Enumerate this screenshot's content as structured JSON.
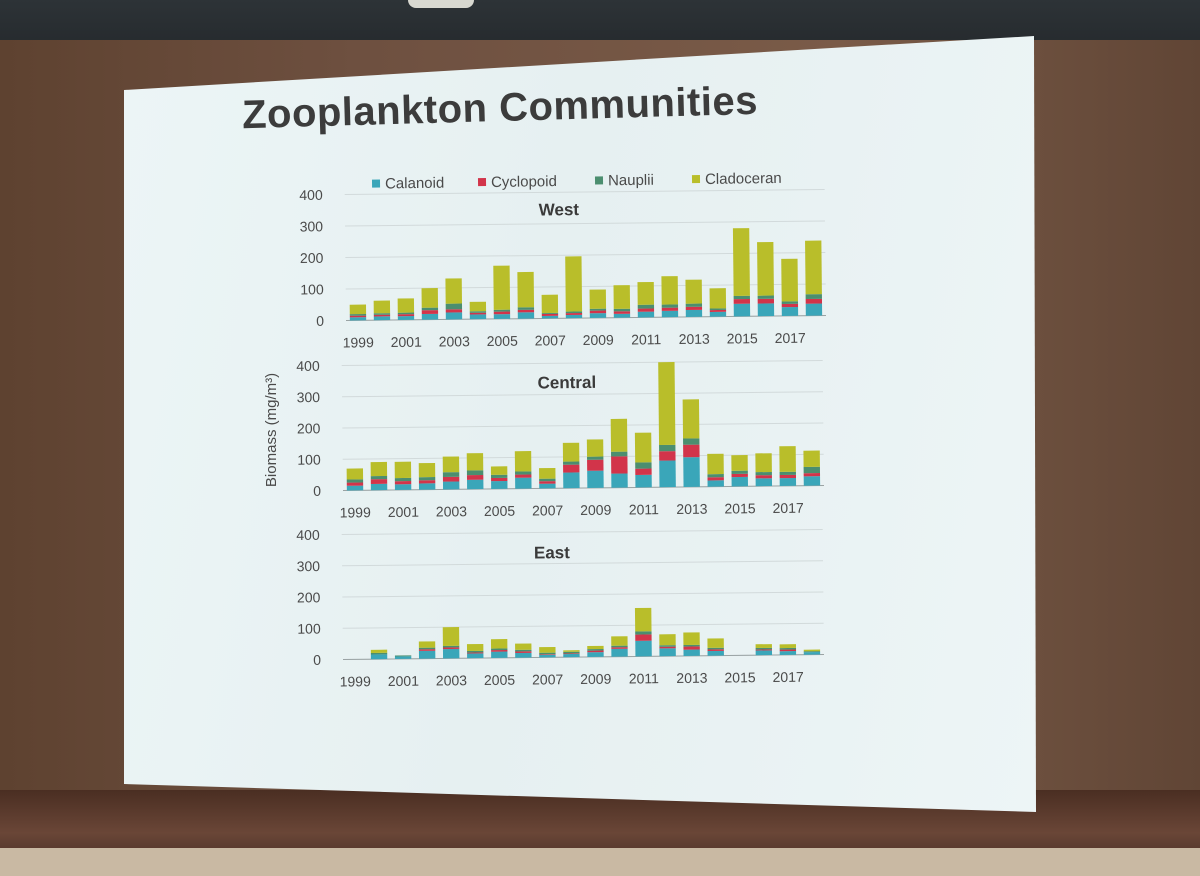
{
  "slide": {
    "title": "Zooplankton Communities"
  },
  "colors": {
    "Calanoid": "#3aa6b9",
    "Cyclopoid": "#d2344a",
    "Nauplii": "#4b8e6f",
    "Cladoceran": "#b9be2a"
  },
  "chart_data": [
    {
      "type": "bar",
      "stacked": true,
      "title": "West",
      "ylabel": "Biomass (mg/m³)",
      "ylim": [
        0,
        400
      ],
      "yticks": [
        "0",
        "100",
        "200",
        "300",
        "400"
      ],
      "xticklabels": [
        "1999",
        "2001",
        "2003",
        "2005",
        "2007",
        "2009",
        "2011",
        "2013",
        "2015",
        "2017"
      ],
      "categories": [
        "1999",
        "2000",
        "2001",
        "2002",
        "2003",
        "2004",
        "2005",
        "2006",
        "2007",
        "2008",
        "2009",
        "2010",
        "2011",
        "2012",
        "2013",
        "2014",
        "2015",
        "2016",
        "2017",
        "2018"
      ],
      "legend": [
        "Calanoid",
        "Cyclopoid",
        "Nauplii",
        "Cladoceran"
      ],
      "legend_position": "top",
      "grid": true,
      "series": [
        {
          "name": "Calanoid",
          "values": [
            10,
            12,
            12,
            18,
            22,
            15,
            15,
            20,
            8,
            10,
            15,
            12,
            18,
            20,
            22,
            15,
            40,
            40,
            28,
            38
          ]
        },
        {
          "name": "Cyclopoid",
          "values": [
            5,
            5,
            6,
            12,
            10,
            5,
            8,
            8,
            6,
            6,
            8,
            8,
            10,
            10,
            10,
            6,
            15,
            15,
            10,
            15
          ]
        },
        {
          "name": "Nauplii",
          "values": [
            5,
            5,
            5,
            8,
            18,
            5,
            6,
            8,
            3,
            5,
            6,
            8,
            12,
            10,
            10,
            5,
            10,
            10,
            8,
            15
          ]
        },
        {
          "name": "Cladoceran",
          "values": [
            30,
            40,
            45,
            62,
            80,
            30,
            140,
            112,
            58,
            175,
            61,
            75,
            72,
            90,
            76,
            64,
            215,
            170,
            135,
            170
          ]
        }
      ]
    },
    {
      "type": "bar",
      "stacked": true,
      "title": "Central",
      "ylabel": "Biomass (mg/m³)",
      "ylim": [
        0,
        400
      ],
      "yticks": [
        "0",
        "100",
        "200",
        "300",
        "400"
      ],
      "xticklabels": [
        "1999",
        "2001",
        "2003",
        "2005",
        "2007",
        "2009",
        "2011",
        "2013",
        "2015",
        "2017"
      ],
      "categories": [
        "1999",
        "2000",
        "2001",
        "2002",
        "2003",
        "2004",
        "2005",
        "2006",
        "2007",
        "2008",
        "2009",
        "2010",
        "2011",
        "2012",
        "2013",
        "2014",
        "2015",
        "2016",
        "2017",
        "2018"
      ],
      "legend": [
        "Calanoid",
        "Cyclopoid",
        "Nauplii",
        "Cladoceran"
      ],
      "grid": true,
      "series": [
        {
          "name": "Calanoid",
          "values": [
            15,
            20,
            18,
            20,
            25,
            30,
            25,
            35,
            15,
            50,
            55,
            45,
            40,
            85,
            95,
            20,
            30,
            25,
            25,
            30
          ]
        },
        {
          "name": "Cyclopoid",
          "values": [
            10,
            15,
            10,
            10,
            15,
            15,
            10,
            10,
            8,
            25,
            35,
            55,
            20,
            30,
            40,
            10,
            10,
            10,
            10,
            10
          ]
        },
        {
          "name": "Nauplii",
          "values": [
            10,
            10,
            10,
            10,
            15,
            15,
            10,
            10,
            8,
            10,
            10,
            15,
            20,
            20,
            20,
            10,
            10,
            10,
            10,
            20
          ]
        },
        {
          "name": "Cladoceran",
          "values": [
            35,
            45,
            52,
            45,
            50,
            55,
            27,
            65,
            34,
            60,
            55,
            105,
            95,
            265,
            125,
            65,
            50,
            60,
            82,
            52
          ]
        }
      ]
    },
    {
      "type": "bar",
      "stacked": true,
      "title": "East",
      "ylabel": "Biomass (mg/m³)",
      "ylim": [
        0,
        400
      ],
      "yticks": [
        "0",
        "100",
        "200",
        "300",
        "400"
      ],
      "xticklabels": [
        "1999",
        "2001",
        "2003",
        "2005",
        "2007",
        "2009",
        "2011",
        "2013",
        "2015",
        "2017"
      ],
      "categories": [
        "1999",
        "2000",
        "2001",
        "2002",
        "2003",
        "2004",
        "2005",
        "2006",
        "2007",
        "2008",
        "2009",
        "2010",
        "2011",
        "2012",
        "2013",
        "2014",
        "2015",
        "2016",
        "2017",
        "2018"
      ],
      "legend": [
        "Calanoid",
        "Cyclopoid",
        "Nauplii",
        "Cladoceran"
      ],
      "grid": true,
      "series": [
        {
          "name": "Calanoid",
          "values": [
            0,
            15,
            8,
            25,
            30,
            15,
            20,
            15,
            8,
            10,
            15,
            25,
            50,
            25,
            20,
            15,
            0,
            15,
            12,
            8
          ]
        },
        {
          "name": "Cyclopoid",
          "values": [
            0,
            0,
            0,
            5,
            5,
            3,
            5,
            5,
            2,
            2,
            5,
            5,
            20,
            5,
            10,
            5,
            0,
            3,
            5,
            0
          ]
        },
        {
          "name": "Nauplii",
          "values": [
            0,
            5,
            3,
            5,
            5,
            5,
            5,
            5,
            5,
            5,
            5,
            5,
            10,
            5,
            5,
            5,
            0,
            5,
            5,
            3
          ]
        },
        {
          "name": "Cladoceran",
          "values": [
            0,
            10,
            0,
            20,
            60,
            22,
            30,
            20,
            18,
            5,
            10,
            30,
            75,
            35,
            40,
            30,
            0,
            12,
            12,
            5
          ]
        }
      ]
    }
  ]
}
